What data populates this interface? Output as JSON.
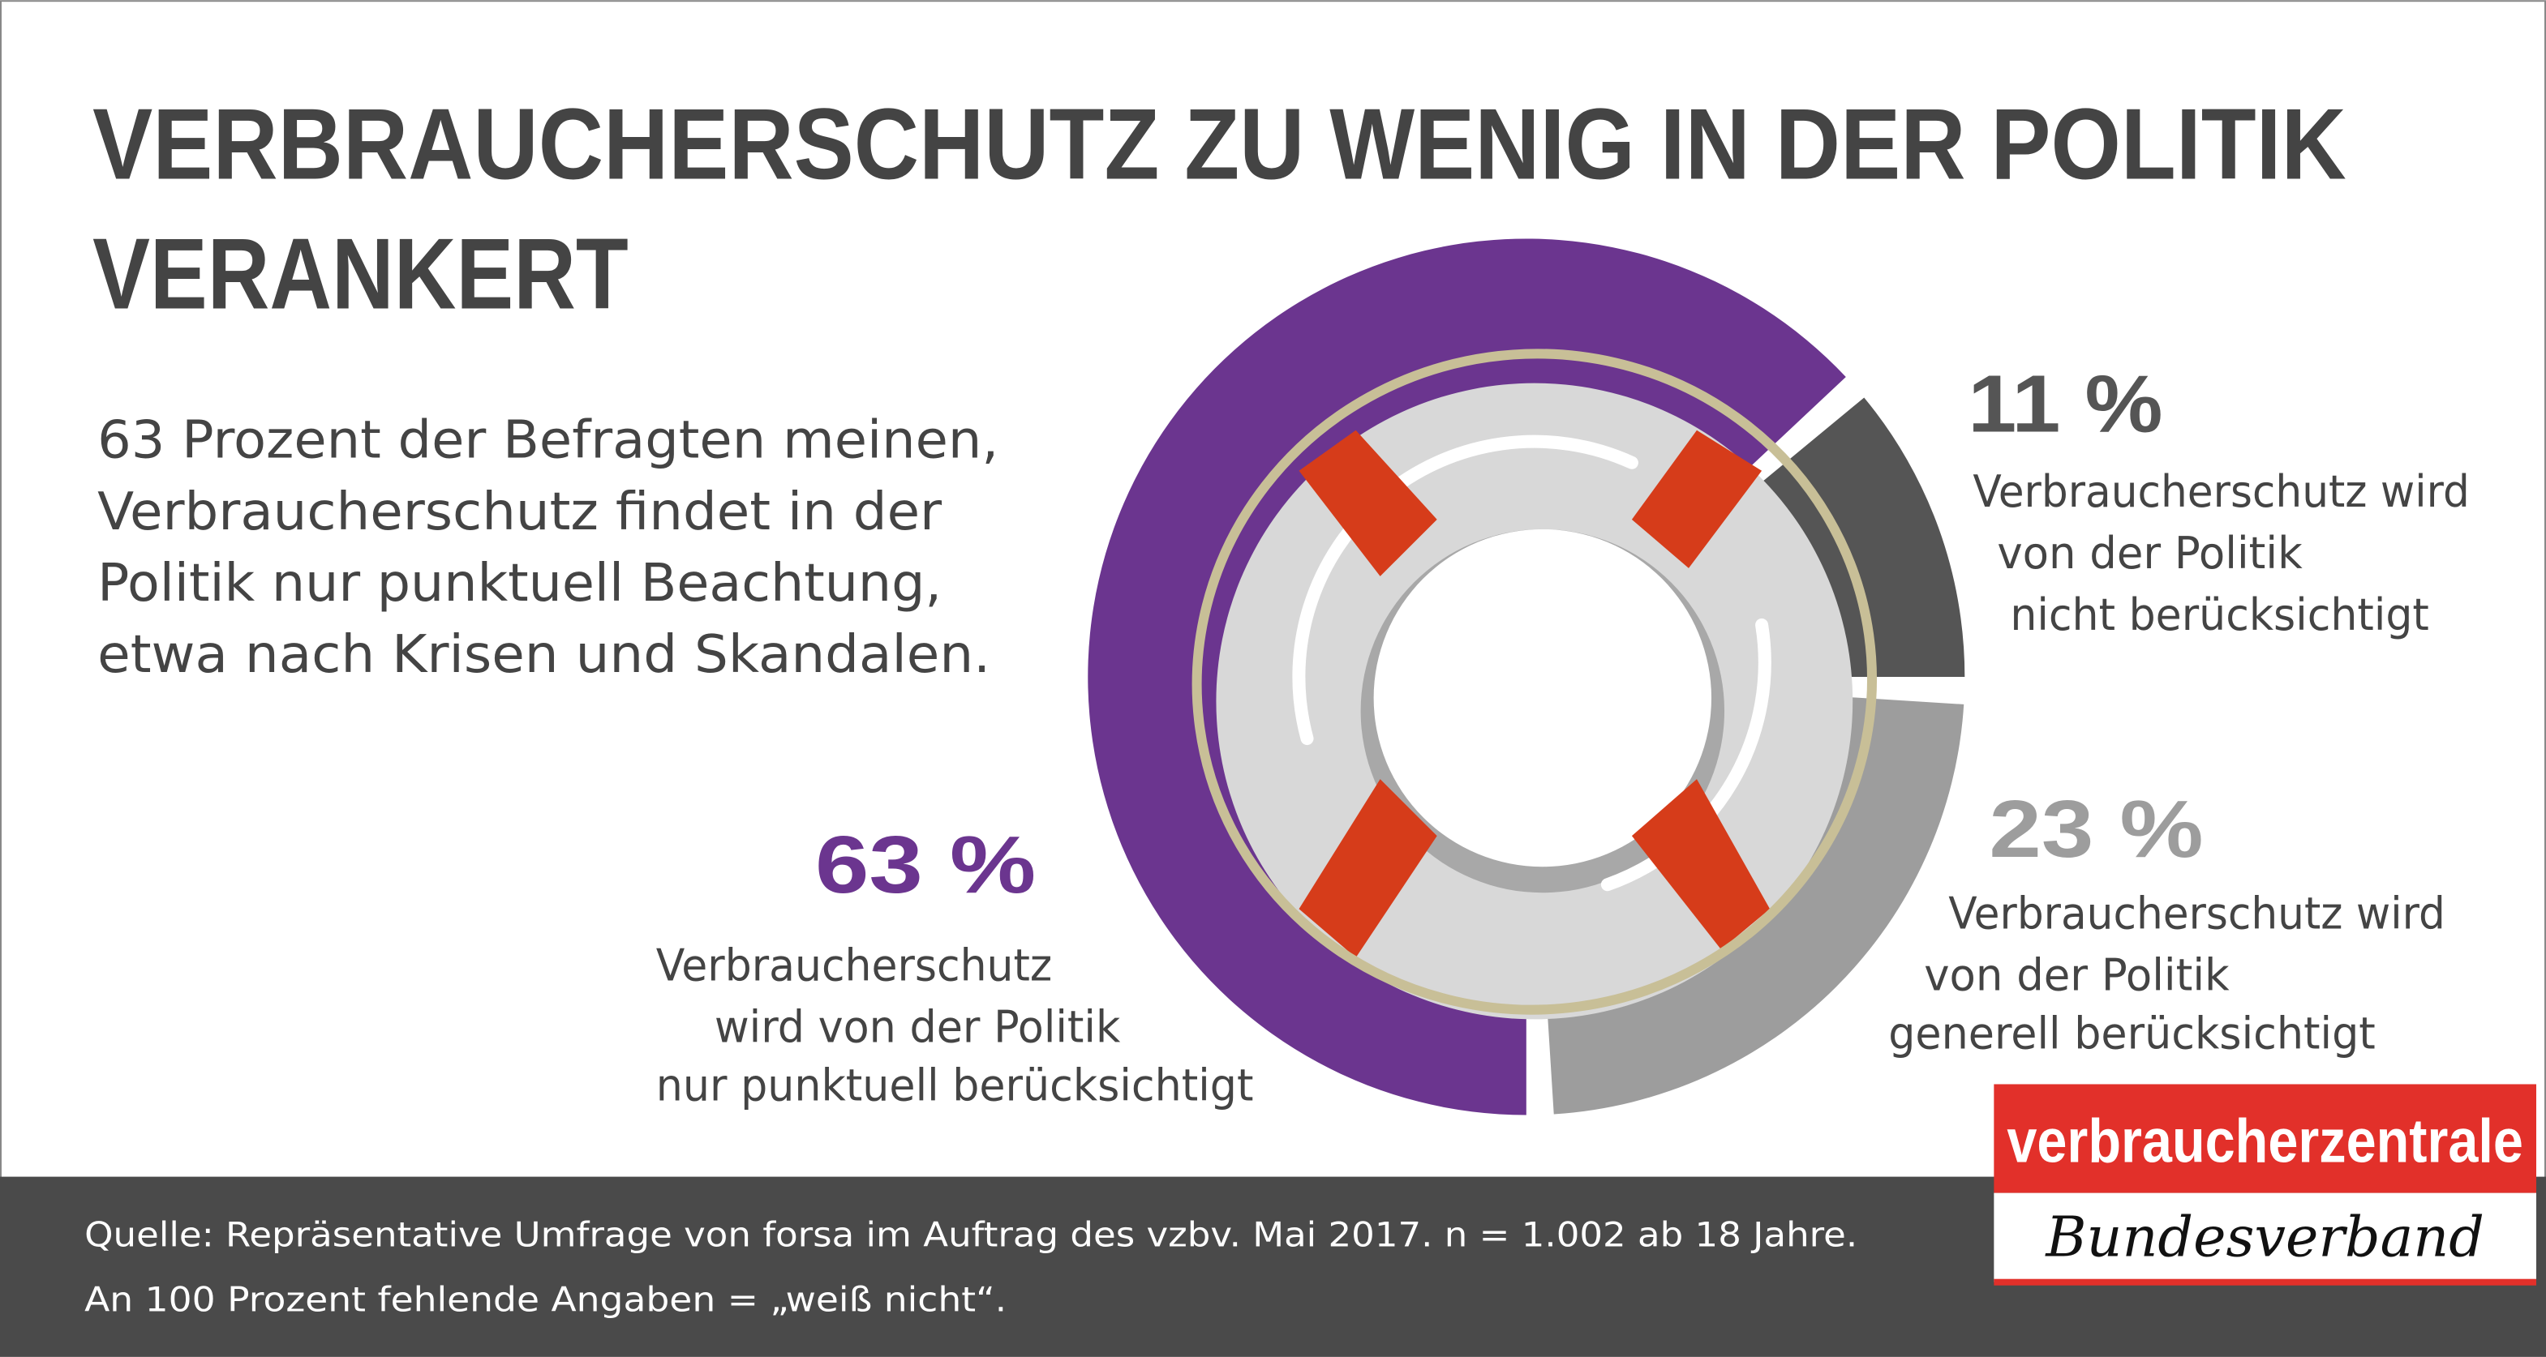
{
  "chart_data": {
    "type": "pie",
    "title": [
      "VERBRAUCHERSCHUTZ ZU WENIG IN DER POLITIK",
      "VERANKERT"
    ],
    "subtitle": [
      "63 Prozent der Befragten meinen,",
      "Verbraucherschutz findet in der",
      "Politik nur punktuell Beachtung,",
      "etwa nach Krisen und Skandalen."
    ],
    "categories": [
      [
        "Verbraucherschutz",
        "wird von der Politik",
        "nur punktuell berücksichtigt"
      ],
      [
        "Verbraucherschutz wird",
        "von der Politik",
        "nicht berücksichtigt"
      ],
      [
        "Verbraucherschutz wird",
        "von der Politik",
        "generell berücksichtigt"
      ]
    ],
    "values": [
      63,
      11,
      23
    ],
    "value_labels": [
      "63 %",
      "11 %",
      "23 %"
    ],
    "colors": [
      "#6b358f",
      "#555555",
      "#9d9d9d"
    ],
    "source": [
      "Quelle: Repräsentative Umfrage von forsa im Auftrag des vzbv. Mai 2017. n = 1.002 ab 18 Jahre.",
      "An 100 Prozent fehlende Angaben = „weiß nicht“."
    ]
  },
  "logo": {
    "name": "verbraucherzentrale",
    "subtitle": "Bundesverband"
  }
}
